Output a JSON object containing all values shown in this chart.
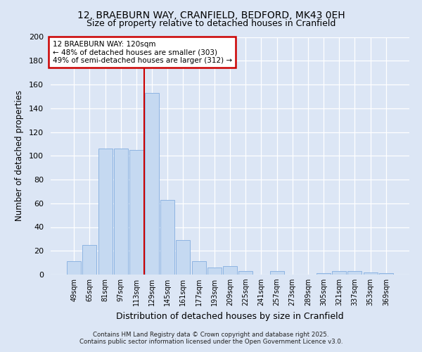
{
  "title1": "12, BRAEBURN WAY, CRANFIELD, BEDFORD, MK43 0EH",
  "title2": "Size of property relative to detached houses in Cranfield",
  "xlabel": "Distribution of detached houses by size in Cranfield",
  "ylabel": "Number of detached properties",
  "categories": [
    "49sqm",
    "65sqm",
    "81sqm",
    "97sqm",
    "113sqm",
    "129sqm",
    "145sqm",
    "161sqm",
    "177sqm",
    "193sqm",
    "209sqm",
    "225sqm",
    "241sqm",
    "257sqm",
    "273sqm",
    "289sqm",
    "305sqm",
    "321sqm",
    "337sqm",
    "353sqm",
    "369sqm"
  ],
  "values": [
    11,
    25,
    106,
    106,
    105,
    153,
    63,
    29,
    11,
    6,
    7,
    3,
    0,
    3,
    0,
    0,
    1,
    3,
    3,
    2,
    1
  ],
  "bar_color": "#c5d9f1",
  "bar_edge_color": "#8db4e2",
  "vline_x": 4.5,
  "annotation_title": "12 BRAEBURN WAY: 120sqm",
  "annotation_line1": "← 48% of detached houses are smaller (303)",
  "annotation_line2": "49% of semi-detached houses are larger (312) →",
  "annotation_box_color": "#ffffff",
  "annotation_box_edge": "#cc0000",
  "vline_color": "#cc0000",
  "ylim": [
    0,
    200
  ],
  "yticks": [
    0,
    20,
    40,
    60,
    80,
    100,
    120,
    140,
    160,
    180,
    200
  ],
  "fig_bg_color": "#dce6f5",
  "plot_bg_color": "#dce6f5",
  "footer1": "Contains HM Land Registry data © Crown copyright and database right 2025.",
  "footer2": "Contains public sector information licensed under the Open Government Licence v3.0."
}
